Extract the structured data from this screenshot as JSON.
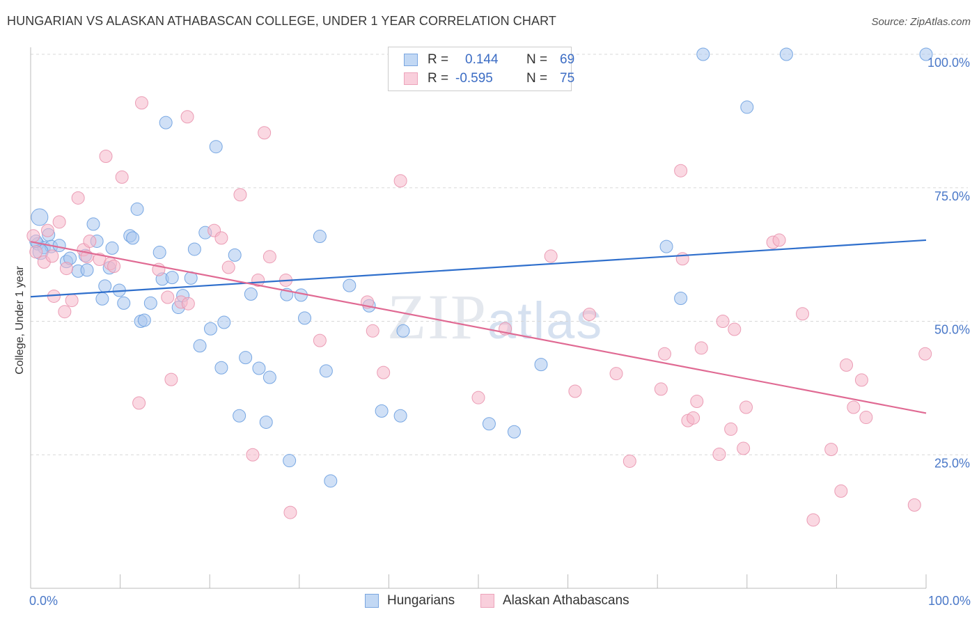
{
  "title": "HUNGARIAN VS ALASKAN ATHABASCAN COLLEGE, UNDER 1 YEAR CORRELATION CHART",
  "source": "Source: ZipAtlas.com",
  "watermark": {
    "zip": "ZIP",
    "atlas": "atlas"
  },
  "legend_top": {
    "rows": [
      {
        "r_label": "R =",
        "r_value": "0.144",
        "n_label": "N =",
        "n_value": "69",
        "color": "#a9c7ef"
      },
      {
        "r_label": "R =",
        "r_value": "-0.595",
        "n_label": "N =",
        "n_value": "75",
        "color": "#f5b8cb"
      }
    ]
  },
  "legend_bottom": {
    "items": [
      {
        "label": "Hungarians",
        "color": "#a9c7ef"
      },
      {
        "label": "Alaskan Athabascans",
        "color": "#f5b8cb"
      }
    ]
  },
  "chart_data": {
    "type": "scatter",
    "title": "HUNGARIAN VS ALASKAN ATHABASCAN COLLEGE, UNDER 1 YEAR CORRELATION CHART",
    "xlabel": "",
    "ylabel": "College, Under 1 year",
    "xlim": [
      0,
      100
    ],
    "ylim": [
      0,
      100
    ],
    "x_ticks": [
      "0.0%",
      "100.0%"
    ],
    "y_ticks": [
      "25.0%",
      "50.0%",
      "75.0%",
      "100.0%"
    ],
    "grid": "horizontal dashed",
    "legend": "top-center",
    "series": [
      {
        "name": "Hungarians",
        "color": "#6a9ee0",
        "fill": "#a9c7ef",
        "trend": {
          "x": [
            0,
            100
          ],
          "y": [
            54.6,
            65.2
          ],
          "color": "#2f6fcc"
        },
        "points": [
          [
            0.8,
            64.5
          ],
          [
            1.0,
            69.5
          ],
          [
            1.5,
            63.8
          ],
          [
            2.0,
            66.2
          ],
          [
            2.3,
            64.0
          ],
          [
            3.2,
            64.2
          ],
          [
            4.0,
            61.2
          ],
          [
            4.4,
            61.8
          ],
          [
            5.3,
            59.4
          ],
          [
            6.1,
            62.3
          ],
          [
            6.3,
            59.6
          ],
          [
            7.0,
            68.2
          ],
          [
            7.4,
            65.0
          ],
          [
            8.0,
            54.2
          ],
          [
            8.3,
            56.6
          ],
          [
            8.8,
            60.0
          ],
          [
            9.1,
            63.7
          ],
          [
            9.9,
            55.8
          ],
          [
            10.4,
            53.4
          ],
          [
            11.1,
            66.0
          ],
          [
            11.4,
            65.6
          ],
          [
            11.9,
            71.0
          ],
          [
            12.3,
            50.0
          ],
          [
            12.7,
            50.2
          ],
          [
            13.4,
            53.4
          ],
          [
            14.4,
            62.9
          ],
          [
            14.7,
            57.9
          ],
          [
            15.1,
            87.2
          ],
          [
            15.8,
            58.2
          ],
          [
            16.5,
            52.6
          ],
          [
            17.0,
            54.8
          ],
          [
            17.9,
            58.1
          ],
          [
            18.3,
            63.5
          ],
          [
            18.9,
            45.4
          ],
          [
            19.5,
            66.6
          ],
          [
            20.1,
            48.6
          ],
          [
            20.7,
            82.7
          ],
          [
            21.3,
            41.3
          ],
          [
            21.6,
            49.8
          ],
          [
            22.8,
            62.4
          ],
          [
            23.3,
            32.3
          ],
          [
            24.0,
            43.2
          ],
          [
            24.6,
            55.1
          ],
          [
            25.5,
            41.2
          ],
          [
            26.3,
            31.1
          ],
          [
            26.7,
            39.5
          ],
          [
            28.6,
            55.0
          ],
          [
            28.9,
            23.9
          ],
          [
            30.2,
            54.9
          ],
          [
            30.6,
            50.6
          ],
          [
            32.3,
            65.9
          ],
          [
            33.0,
            40.7
          ],
          [
            33.5,
            20.1
          ],
          [
            35.6,
            56.7
          ],
          [
            37.8,
            52.9
          ],
          [
            39.2,
            33.2
          ],
          [
            41.3,
            32.3
          ],
          [
            41.6,
            48.2
          ],
          [
            51.2,
            30.8
          ],
          [
            54.0,
            29.3
          ],
          [
            57.0,
            41.9
          ],
          [
            71.0,
            64.0
          ],
          [
            72.6,
            54.3
          ],
          [
            75.1,
            100.0
          ],
          [
            80.0,
            90.1
          ],
          [
            84.4,
            100.0
          ],
          [
            100.0,
            100.0
          ],
          [
            1.1,
            63.0
          ],
          [
            0.6,
            65.0
          ]
        ]
      },
      {
        "name": "Alaskan Athabascans",
        "color": "#e994ae",
        "fill": "#f5b8cb",
        "trend": {
          "x": [
            0,
            100
          ],
          "y": [
            64.9,
            32.8
          ],
          "color": "#e06a93"
        },
        "points": [
          [
            0.3,
            66.0
          ],
          [
            0.6,
            63.0
          ],
          [
            1.5,
            61.1
          ],
          [
            1.9,
            67.0
          ],
          [
            2.4,
            62.2
          ],
          [
            2.6,
            54.7
          ],
          [
            3.2,
            68.6
          ],
          [
            3.8,
            51.8
          ],
          [
            4.0,
            59.9
          ],
          [
            4.6,
            53.9
          ],
          [
            5.3,
            73.1
          ],
          [
            5.9,
            63.4
          ],
          [
            6.3,
            62.1
          ],
          [
            6.6,
            65.0
          ],
          [
            7.7,
            61.6
          ],
          [
            8.4,
            80.9
          ],
          [
            8.9,
            60.8
          ],
          [
            9.3,
            60.3
          ],
          [
            10.2,
            77.0
          ],
          [
            12.1,
            34.7
          ],
          [
            12.4,
            90.9
          ],
          [
            14.3,
            59.7
          ],
          [
            15.3,
            54.5
          ],
          [
            15.7,
            39.1
          ],
          [
            16.8,
            53.6
          ],
          [
            17.6,
            53.3
          ],
          [
            17.5,
            88.3
          ],
          [
            20.5,
            67.0
          ],
          [
            21.3,
            65.6
          ],
          [
            22.1,
            60.1
          ],
          [
            23.4,
            73.7
          ],
          [
            24.8,
            25.0
          ],
          [
            25.4,
            57.7
          ],
          [
            26.1,
            85.3
          ],
          [
            26.7,
            62.1
          ],
          [
            28.5,
            57.7
          ],
          [
            29.0,
            14.2
          ],
          [
            32.3,
            46.4
          ],
          [
            37.6,
            53.6
          ],
          [
            38.2,
            48.2
          ],
          [
            39.4,
            40.4
          ],
          [
            41.3,
            76.3
          ],
          [
            50.0,
            35.7
          ],
          [
            53.0,
            48.6
          ],
          [
            58.1,
            62.2
          ],
          [
            60.8,
            36.9
          ],
          [
            62.4,
            51.3
          ],
          [
            65.4,
            40.2
          ],
          [
            66.9,
            23.8
          ],
          [
            70.4,
            37.3
          ],
          [
            70.8,
            43.9
          ],
          [
            72.6,
            78.2
          ],
          [
            72.8,
            61.7
          ],
          [
            73.4,
            31.4
          ],
          [
            74.4,
            35.0
          ],
          [
            74.0,
            31.9
          ],
          [
            74.9,
            45.0
          ],
          [
            76.9,
            25.1
          ],
          [
            77.3,
            50.0
          ],
          [
            78.2,
            29.8
          ],
          [
            78.6,
            48.5
          ],
          [
            79.6,
            26.2
          ],
          [
            79.9,
            33.9
          ],
          [
            82.9,
            64.8
          ],
          [
            83.6,
            65.2
          ],
          [
            86.2,
            51.4
          ],
          [
            87.4,
            12.8
          ],
          [
            89.4,
            26.0
          ],
          [
            90.5,
            18.2
          ],
          [
            91.1,
            41.8
          ],
          [
            91.9,
            33.9
          ],
          [
            92.8,
            39.0
          ],
          [
            93.3,
            32.0
          ],
          [
            98.7,
            15.6
          ],
          [
            99.9,
            43.9
          ]
        ]
      }
    ]
  }
}
